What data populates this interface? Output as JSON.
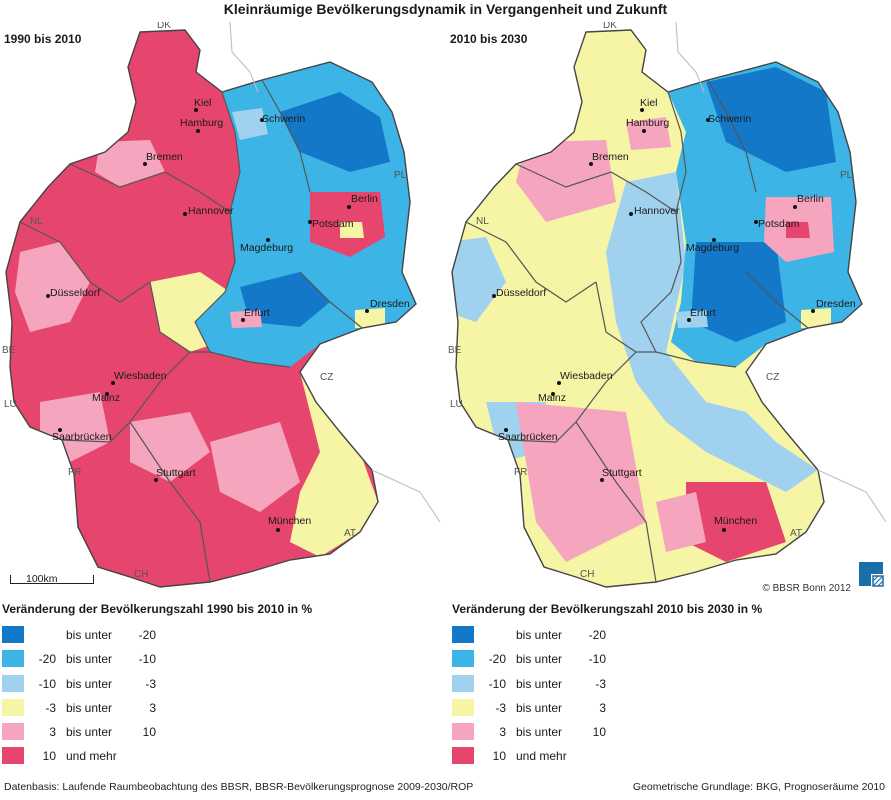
{
  "title": "Kleinräumige Bevölkerungsdynamik in Vergangenheit und Zukunft",
  "colors": {
    "c1": "#1478c8",
    "c2": "#3cb4e6",
    "c3": "#a0d2f0",
    "c4": "#f5f5a5",
    "c5": "#f5a5be",
    "c6": "#e6466e"
  },
  "maps": [
    {
      "period": "1990 bis 2010",
      "legend_title": "Veränderung der Bevölkerungszahl 1990 bis 2010 in %",
      "classes": [
        {
          "lo": "",
          "mid": "bis unter",
          "hi": "-20",
          "color": "#1478c8"
        },
        {
          "lo": "-20",
          "mid": "bis unter",
          "hi": "-10",
          "color": "#3cb4e6"
        },
        {
          "lo": "-10",
          "mid": "bis unter",
          "hi": "-3",
          "color": "#a0d2f0"
        },
        {
          "lo": "-3",
          "mid": "bis unter",
          "hi": "3",
          "color": "#f5f5a5"
        },
        {
          "lo": "3",
          "mid": "bis unter",
          "hi": "10",
          "color": "#f5a5be"
        },
        {
          "lo": "10",
          "mid": "und mehr",
          "hi": "",
          "color": "#e6466e"
        }
      ]
    },
    {
      "period": "2010 bis 2030",
      "legend_title": "Veränderung der Bevölkerungszahl 2010 bis 2030 in %",
      "classes": [
        {
          "lo": "",
          "mid": "bis unter",
          "hi": "-20",
          "color": "#1478c8"
        },
        {
          "lo": "-20",
          "mid": "bis unter",
          "hi": "-10",
          "color": "#3cb4e6"
        },
        {
          "lo": "-10",
          "mid": "bis unter",
          "hi": "-3",
          "color": "#a0d2f0"
        },
        {
          "lo": "-3",
          "mid": "bis unter",
          "hi": "3",
          "color": "#f5f5a5"
        },
        {
          "lo": "3",
          "mid": "bis unter",
          "hi": "10",
          "color": "#f5a5be"
        },
        {
          "lo": "10",
          "mid": "und mehr",
          "hi": "",
          "color": "#e6466e"
        }
      ]
    }
  ],
  "cities": {
    "kiel": "Kiel",
    "hamburg": "Hamburg",
    "schwerin": "Schwerin",
    "bremen": "Bremen",
    "berlin": "Berlin",
    "potsdam": "Potsdam",
    "hannover": "Hannover",
    "magdeburg": "Magdeburg",
    "duesseldorf": "Düsseldorf",
    "erfurt": "Erfurt",
    "dresden": "Dresden",
    "wiesbaden": "Wiesbaden",
    "mainz": "Mainz",
    "saarbruecken": "Saarbrücken",
    "stuttgart": "Stuttgart",
    "muenchen": "München"
  },
  "countries": {
    "dk": "DK",
    "pl": "PL",
    "nl": "NL",
    "be": "BE",
    "lu": "LU",
    "cz": "CZ",
    "fr": "FR",
    "at": "AT",
    "ch": "CH"
  },
  "scale_label": "100km",
  "copyright": "© BBSR Bonn 2012",
  "footer_left": "Datenbasis: Laufende Raumbeobachtung des BBSR, BBSR-Bevölkerungsprognose 2009-2030/ROP",
  "footer_right": "Geometrische Grundlage: BKG, Prognoseräume 2010"
}
